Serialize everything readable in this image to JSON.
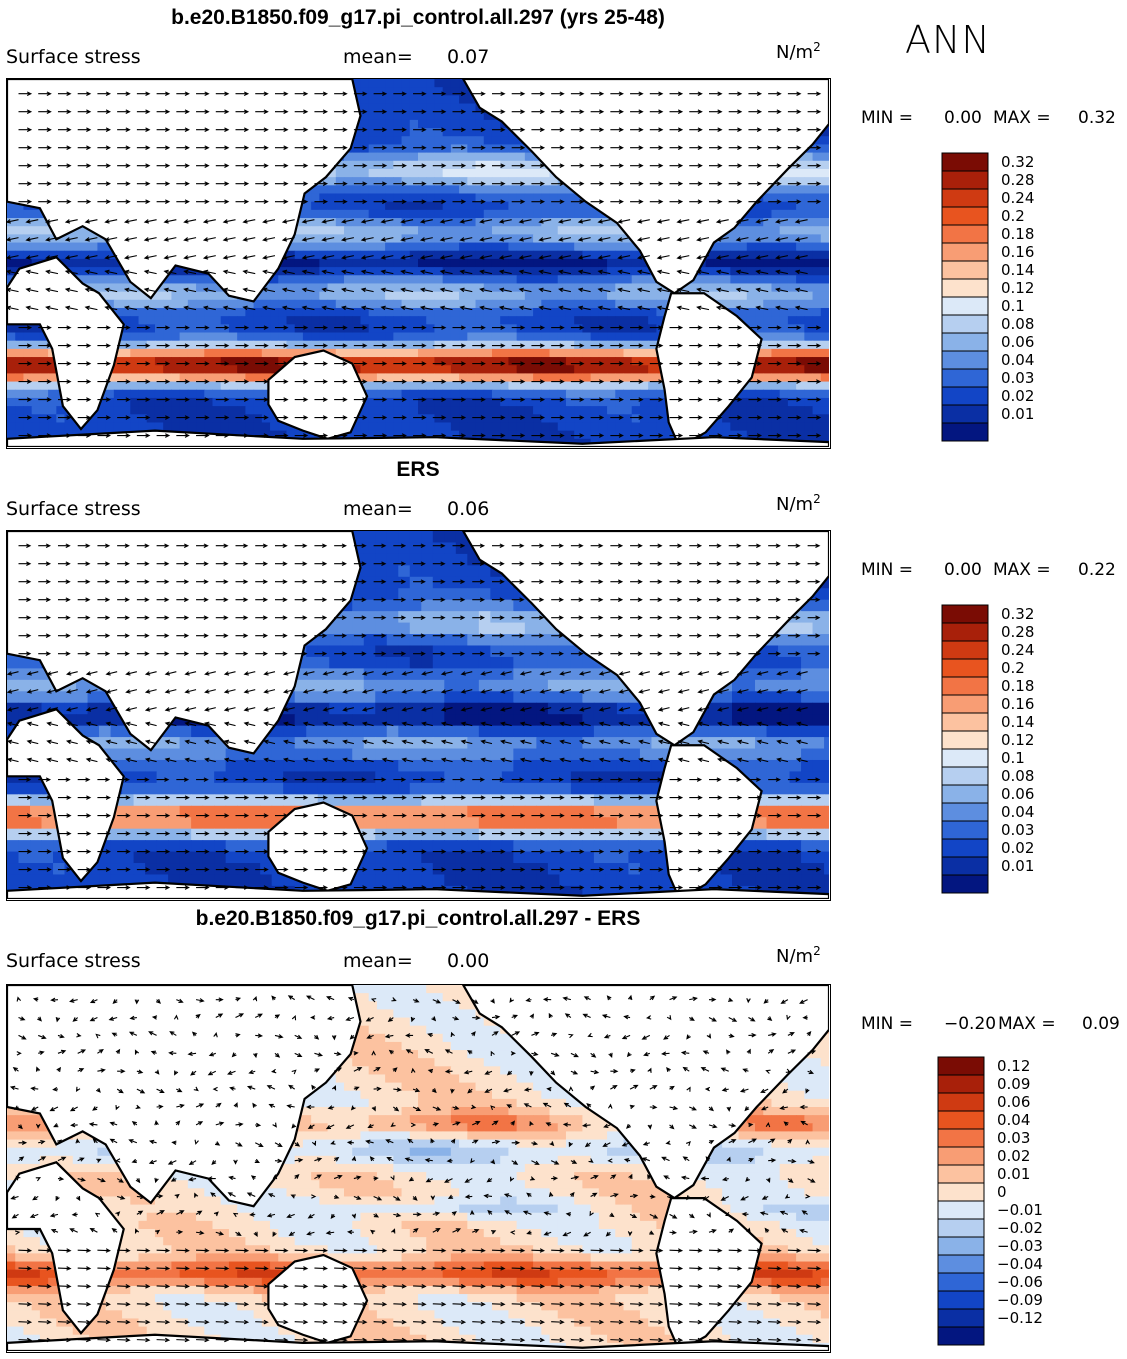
{
  "season": "ANN",
  "colors": {
    "land": "#ffffff",
    "coast": "#000000",
    "pos_ramp": [
      "#fde2cc",
      "#fcc2a0",
      "#f89d74",
      "#f27445",
      "#e8541f",
      "#cf3a12",
      "#a8200a",
      "#7a0c04"
    ],
    "neg_ramp": [
      "#dce9f8",
      "#b6cff0",
      "#8ab2e8",
      "#5d8ee0",
      "#2f66d6",
      "#1245c6",
      "#0a2fa4",
      "#031680"
    ]
  },
  "panels": [
    {
      "id": "model",
      "title": "b.e20.B1850.f09_g17.pi_control.all.297 (yrs 25-48)",
      "variable": "Surface stress",
      "mean_label": "mean=",
      "mean_value": "0.07",
      "units": "N/m",
      "units_exp": "2",
      "min_label": "MIN =",
      "min_value": "0.00",
      "max_label": "MAX =",
      "max_value": "0.32",
      "colorbar_labels": [
        "0.32",
        "0.28",
        "0.24",
        "0.2",
        "0.18",
        "0.16",
        "0.14",
        "0.12",
        "0.1",
        "0.08",
        "0.06",
        "0.04",
        "0.03",
        "0.02",
        "0.01"
      ],
      "colorbar_kind": "sequential"
    },
    {
      "id": "obs",
      "title": "ERS",
      "variable": "Surface stress",
      "mean_label": "mean=",
      "mean_value": "0.06",
      "units": "N/m",
      "units_exp": "2",
      "min_label": "MIN =",
      "min_value": "0.00",
      "max_label": "MAX =",
      "max_value": "0.22",
      "colorbar_labels": [
        "0.32",
        "0.28",
        "0.24",
        "0.2",
        "0.18",
        "0.16",
        "0.14",
        "0.12",
        "0.1",
        "0.08",
        "0.06",
        "0.04",
        "0.03",
        "0.02",
        "0.01"
      ],
      "colorbar_kind": "sequential"
    },
    {
      "id": "diff",
      "title": "b.e20.B1850.f09_g17.pi_control.all.297 - ERS",
      "variable": "Surface stress",
      "mean_label": "mean=",
      "mean_value": "0.00",
      "units": "N/m",
      "units_exp": "2",
      "min_label": "MIN =",
      "min_value": "−0.20",
      "max_label": "MAX =",
      "max_value": "0.09",
      "colorbar_labels": [
        "0.12",
        "0.09",
        "0.06",
        "0.04",
        "0.03",
        "0.02",
        "0.01",
        "0",
        "−0.01",
        "−0.02",
        "−0.03",
        "−0.04",
        "−0.06",
        "−0.09",
        "−0.12"
      ],
      "colorbar_kind": "diverging"
    }
  ]
}
